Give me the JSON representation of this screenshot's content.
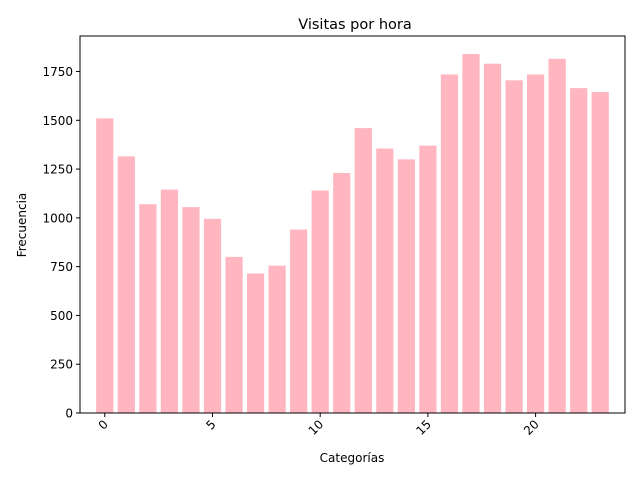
{
  "chart_data": {
    "type": "bar",
    "title": "Visitas por hora",
    "xlabel": "Categorías",
    "ylabel": "Frecuencia",
    "categories": [
      0,
      1,
      2,
      3,
      4,
      5,
      6,
      7,
      8,
      9,
      10,
      11,
      12,
      13,
      14,
      15,
      16,
      17,
      18,
      19,
      20,
      21,
      22,
      23
    ],
    "values": [
      1510,
      1315,
      1070,
      1145,
      1055,
      995,
      800,
      715,
      755,
      940,
      1140,
      1230,
      1460,
      1355,
      1300,
      1370,
      1735,
      1840,
      1790,
      1705,
      1735,
      1815,
      1665,
      1645
    ],
    "xticks": [
      0,
      5,
      10,
      15,
      20
    ],
    "xtick_labels": [
      "0",
      "5",
      "10",
      "15",
      "20"
    ],
    "yticks": [
      0,
      250,
      500,
      750,
      1000,
      1250,
      1500,
      1750
    ],
    "ytick_labels": [
      "0",
      "250",
      "500",
      "750",
      "1000",
      "1250",
      "1500",
      "1750"
    ],
    "xlim": [
      -1.15,
      24.15
    ],
    "ylim": [
      0,
      1932
    ],
    "bar_color": "#ffb6c1",
    "grid": false,
    "xtick_rotation": 45
  }
}
